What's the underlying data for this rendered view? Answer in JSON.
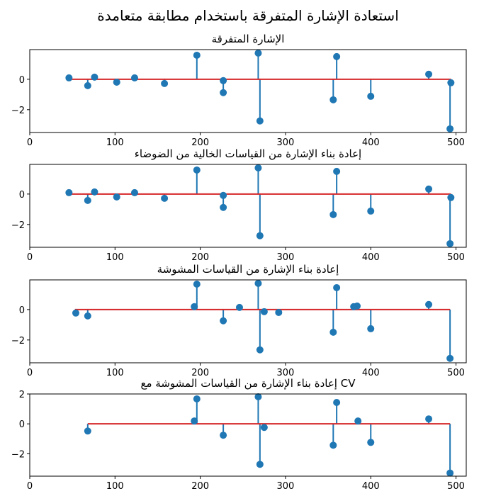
{
  "figure": {
    "suptitle": "استعادة الإشارة المتفرقة باستخدام مطابقة متعامدة",
    "colors": {
      "stem": "#1f77b4",
      "baseline": "#d62728",
      "axis": "#000000"
    }
  },
  "chart_data": [
    {
      "type": "stem",
      "title": "الإشارة المتفرقة",
      "xlim": [
        0,
        512
      ],
      "ylim": [
        -3.5,
        1.95
      ],
      "xticks": [
        0,
        100,
        200,
        300,
        400,
        500
      ],
      "yticks": [
        -2,
        0
      ],
      "ytick_labels": [
        "−2",
        "0"
      ],
      "baseline": [
        46,
        494
      ],
      "points": [
        {
          "x": 46,
          "y": 0.09
        },
        {
          "x": 68,
          "y": -0.42
        },
        {
          "x": 76,
          "y": 0.14
        },
        {
          "x": 102,
          "y": -0.19
        },
        {
          "x": 123,
          "y": 0.09
        },
        {
          "x": 158,
          "y": -0.28
        },
        {
          "x": 196,
          "y": 1.58
        },
        {
          "x": 227,
          "y": -0.09
        },
        {
          "x": 227,
          "y": -0.88
        },
        {
          "x": 268,
          "y": 1.72
        },
        {
          "x": 270,
          "y": -2.74
        },
        {
          "x": 356,
          "y": -1.35
        },
        {
          "x": 360,
          "y": 1.49
        },
        {
          "x": 400,
          "y": -1.12
        },
        {
          "x": 468,
          "y": 0.33
        },
        {
          "x": 493,
          "y": -3.26
        },
        {
          "x": 494,
          "y": -0.23
        }
      ]
    },
    {
      "type": "stem",
      "title": "إعادة بناء الإشارة من القياسات الخالية من الضوضاء",
      "xlim": [
        0,
        512
      ],
      "ylim": [
        -3.5,
        1.95
      ],
      "xticks": [
        0,
        100,
        200,
        300,
        400,
        500
      ],
      "yticks": [
        -2,
        0
      ],
      "ytick_labels": [
        "−2",
        "0"
      ],
      "baseline": [
        46,
        494
      ],
      "points": [
        {
          "x": 46,
          "y": 0.09
        },
        {
          "x": 68,
          "y": -0.42
        },
        {
          "x": 76,
          "y": 0.14
        },
        {
          "x": 102,
          "y": -0.19
        },
        {
          "x": 123,
          "y": 0.09
        },
        {
          "x": 158,
          "y": -0.28
        },
        {
          "x": 196,
          "y": 1.58
        },
        {
          "x": 227,
          "y": -0.09
        },
        {
          "x": 227,
          "y": -0.88
        },
        {
          "x": 268,
          "y": 1.72
        },
        {
          "x": 270,
          "y": -2.74
        },
        {
          "x": 356,
          "y": -1.35
        },
        {
          "x": 360,
          "y": 1.49
        },
        {
          "x": 400,
          "y": -1.12
        },
        {
          "x": 468,
          "y": 0.33
        },
        {
          "x": 493,
          "y": -3.26
        },
        {
          "x": 494,
          "y": -0.23
        }
      ]
    },
    {
      "type": "stem",
      "title": "إعادة بناء الإشارة من القياسات المشوشة",
      "xlim": [
        0,
        512
      ],
      "ylim": [
        -3.5,
        1.95
      ],
      "xticks": [
        0,
        100,
        200,
        300,
        400,
        500
      ],
      "yticks": [
        -2,
        0
      ],
      "ytick_labels": [
        "−2",
        "0"
      ],
      "baseline": [
        53,
        493
      ],
      "points": [
        {
          "x": 54,
          "y": -0.23
        },
        {
          "x": 68,
          "y": -0.42
        },
        {
          "x": 193,
          "y": 0.19
        },
        {
          "x": 196,
          "y": 1.67
        },
        {
          "x": 227,
          "y": -0.74
        },
        {
          "x": 246,
          "y": 0.14
        },
        {
          "x": 268,
          "y": 1.72
        },
        {
          "x": 270,
          "y": -2.65
        },
        {
          "x": 275,
          "y": -0.14
        },
        {
          "x": 292,
          "y": -0.19
        },
        {
          "x": 356,
          "y": -1.49
        },
        {
          "x": 360,
          "y": 1.44
        },
        {
          "x": 380,
          "y": 0.19
        },
        {
          "x": 384,
          "y": 0.23
        },
        {
          "x": 400,
          "y": -1.26
        },
        {
          "x": 468,
          "y": 0.33
        },
        {
          "x": 493,
          "y": -3.21
        }
      ]
    },
    {
      "type": "stem",
      "title": "إعادة بناء الإشارة من القياسات المشوشة مع CV",
      "xlim": [
        0,
        512
      ],
      "ylim": [
        -3.5,
        2.0
      ],
      "xticks": [
        0,
        100,
        200,
        300,
        400,
        500
      ],
      "yticks": [
        -2,
        0,
        2
      ],
      "ytick_labels": [
        "−2",
        "0",
        "2"
      ],
      "baseline": [
        68,
        493
      ],
      "points": [
        {
          "x": 68,
          "y": -0.48
        },
        {
          "x": 193,
          "y": 0.19
        },
        {
          "x": 196,
          "y": 1.67
        },
        {
          "x": 227,
          "y": -0.76
        },
        {
          "x": 268,
          "y": 1.81
        },
        {
          "x": 270,
          "y": -2.71
        },
        {
          "x": 275,
          "y": -0.24
        },
        {
          "x": 356,
          "y": -1.43
        },
        {
          "x": 360,
          "y": 1.43
        },
        {
          "x": 385,
          "y": 0.19
        },
        {
          "x": 400,
          "y": -1.24
        },
        {
          "x": 468,
          "y": 0.33
        },
        {
          "x": 493,
          "y": -3.29
        }
      ]
    }
  ]
}
